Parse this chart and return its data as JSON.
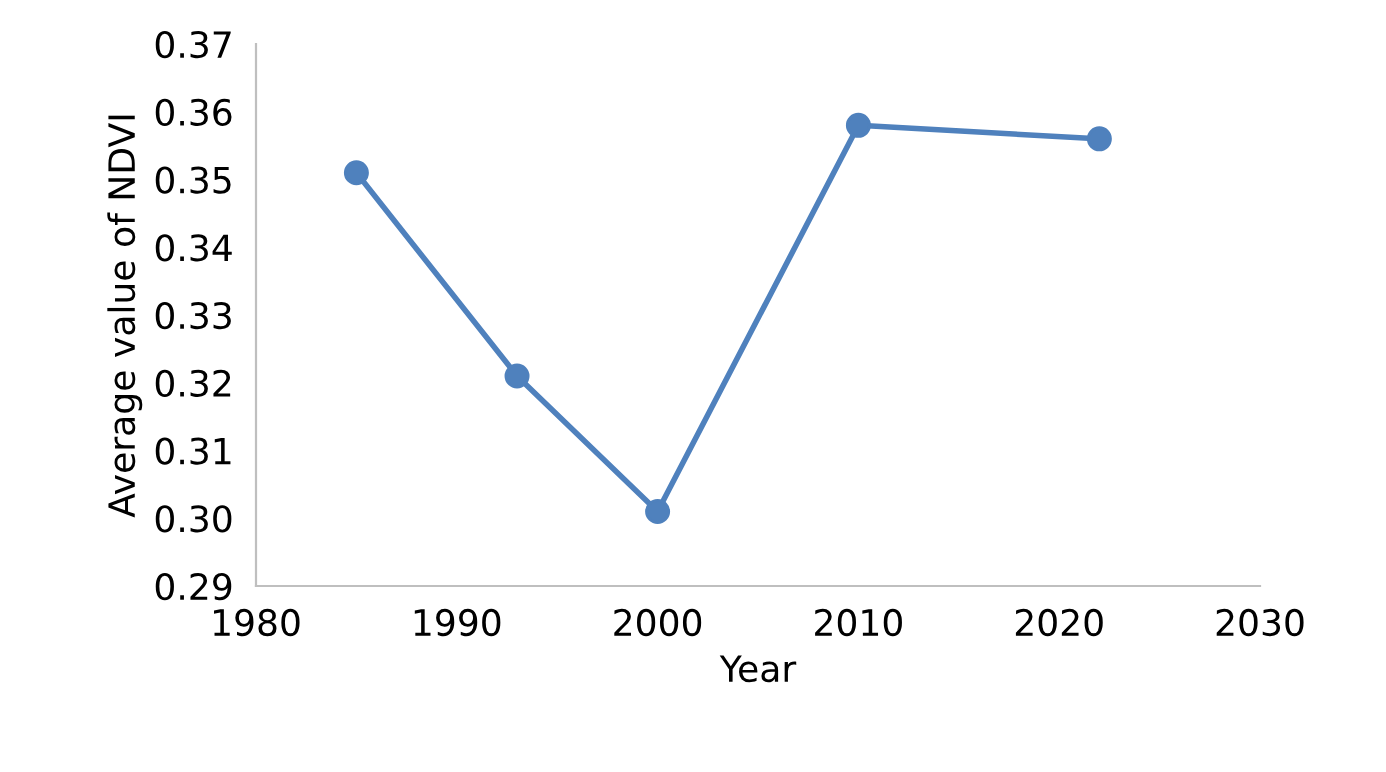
{
  "chart_data": {
    "type": "line",
    "xlabel": "Year",
    "ylabel": "Average value of NDVI",
    "x": [
      1985,
      1993,
      2000,
      2010,
      2022
    ],
    "series": [
      {
        "color": "#4f81bd",
        "values": [
          0.351,
          0.321,
          0.301,
          0.358,
          0.356
        ]
      }
    ],
    "xlim": [
      1980,
      2030
    ],
    "xticks": [
      1980,
      1990,
      2000,
      2010,
      2020,
      2030
    ],
    "ylim": [
      0.29,
      0.37
    ],
    "yticks": [
      {
        "value": 0.29,
        "label": "0.29"
      },
      {
        "value": 0.3,
        "label": "0.30"
      },
      {
        "value": 0.31,
        "label": "0.31"
      },
      {
        "value": 0.32,
        "label": "0.32"
      },
      {
        "value": 0.33,
        "label": "0.33"
      },
      {
        "value": 0.34,
        "label": "0.34"
      },
      {
        "value": 0.35,
        "label": "0.35"
      },
      {
        "value": 0.36,
        "label": "0.36"
      },
      {
        "value": 0.37,
        "label": "0.37"
      }
    ],
    "grid": false,
    "legend": false,
    "marker": "circle",
    "line_style": "solid"
  }
}
